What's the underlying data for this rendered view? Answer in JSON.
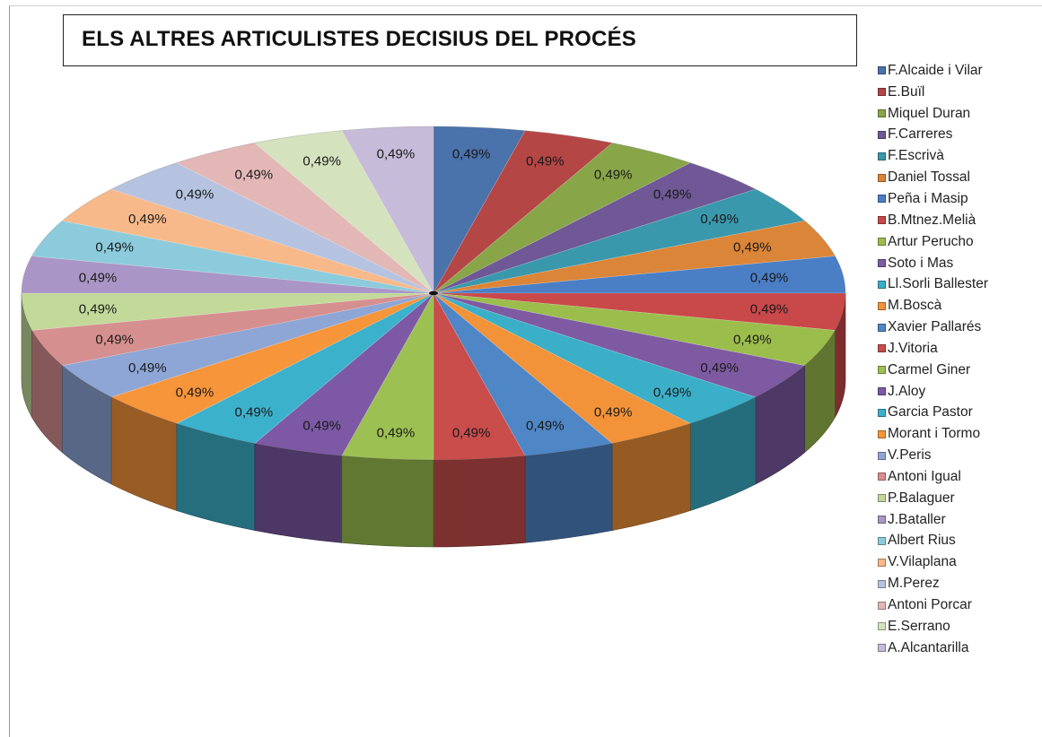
{
  "chart_data": {
    "type": "pie",
    "title": "ELS ALTRES ARTICULISTES DECISIUS DEL PROCÉS",
    "legend_position": "right",
    "slices": [
      {
        "label": "F.Alcaide i Vilar",
        "value": 0.49,
        "display": "0,49%",
        "color": "#4a72ab"
      },
      {
        "label": "E.Buïl",
        "value": 0.49,
        "display": "0,49%",
        "color": "#b44645"
      },
      {
        "label": "Miquel Duran",
        "value": 0.49,
        "display": "0,49%",
        "color": "#88a548"
      },
      {
        "label": "F.Carreres",
        "value": 0.49,
        "display": "0,49%",
        "color": "#6f5895"
      },
      {
        "label": "F.Escrivà",
        "value": 0.49,
        "display": "0,49%",
        "color": "#3a98ad"
      },
      {
        "label": "Daniel Tossal",
        "value": 0.49,
        "display": "0,49%",
        "color": "#db8538"
      },
      {
        "label": "Peña i Masip",
        "value": 0.49,
        "display": "0,49%",
        "color": "#4a7fc6"
      },
      {
        "label": "B.Mtnez.Melià",
        "value": 0.49,
        "display": "0,49%",
        "color": "#c9484a"
      },
      {
        "label": "Artur Perucho",
        "value": 0.49,
        "display": "0,49%",
        "color": "#9bbd4c"
      },
      {
        "label": "Soto i Mas",
        "value": 0.49,
        "display": "0,49%",
        "color": "#7e5aa3"
      },
      {
        "label": "Ll.Sorli Ballester",
        "value": 0.49,
        "display": "0,49%",
        "color": "#3bafc8"
      },
      {
        "label": "M.Boscà",
        "value": 0.49,
        "display": "0,49%",
        "color": "#f29339"
      },
      {
        "label": "Xavier Pallarés",
        "value": 0.49,
        "display": "0,49%",
        "color": "#4f86c6"
      },
      {
        "label": "J.Vitoria",
        "value": 0.49,
        "display": "0,49%",
        "color": "#c84d4b"
      },
      {
        "label": "Carmel Giner",
        "value": 0.49,
        "display": "0,49%",
        "color": "#9cc152"
      },
      {
        "label": "J.Aloy",
        "value": 0.49,
        "display": "0,49%",
        "color": "#7c58a5"
      },
      {
        "label": "Garcia Pastor",
        "value": 0.49,
        "display": "0,49%",
        "color": "#3cb1cc"
      },
      {
        "label": "Morant i Tormo",
        "value": 0.49,
        "display": "0,49%",
        "color": "#f7953b"
      },
      {
        "label": "V.Peris",
        "value": 0.49,
        "display": "0,49%",
        "color": "#8ea6d6"
      },
      {
        "label": "Antoni Igual",
        "value": 0.49,
        "display": "0,49%",
        "color": "#d68f8f"
      },
      {
        "label": "P.Balaguer",
        "value": 0.49,
        "display": "0,49%",
        "color": "#c2d99a"
      },
      {
        "label": "J.Bataller",
        "value": 0.49,
        "display": "0,49%",
        "color": "#a996c6"
      },
      {
        "label": "Albert Rius",
        "value": 0.49,
        "display": "0,49%",
        "color": "#8ccbdc"
      },
      {
        "label": "V.Vilaplana",
        "value": 0.49,
        "display": "0,49%",
        "color": "#f8b98a"
      },
      {
        "label": "M.Perez",
        "value": 0.49,
        "display": "0,49%",
        "color": "#b5c3e0"
      },
      {
        "label": "Antoni Porcar",
        "value": 0.49,
        "display": "0,49%",
        "color": "#e3b7b6"
      },
      {
        "label": "E.Serrano",
        "value": 0.49,
        "display": "0,49%",
        "color": "#d4e2bd"
      },
      {
        "label": "A.Alcantarilla",
        "value": 0.49,
        "display": "0,49%",
        "color": "#c6bbd8"
      }
    ]
  }
}
